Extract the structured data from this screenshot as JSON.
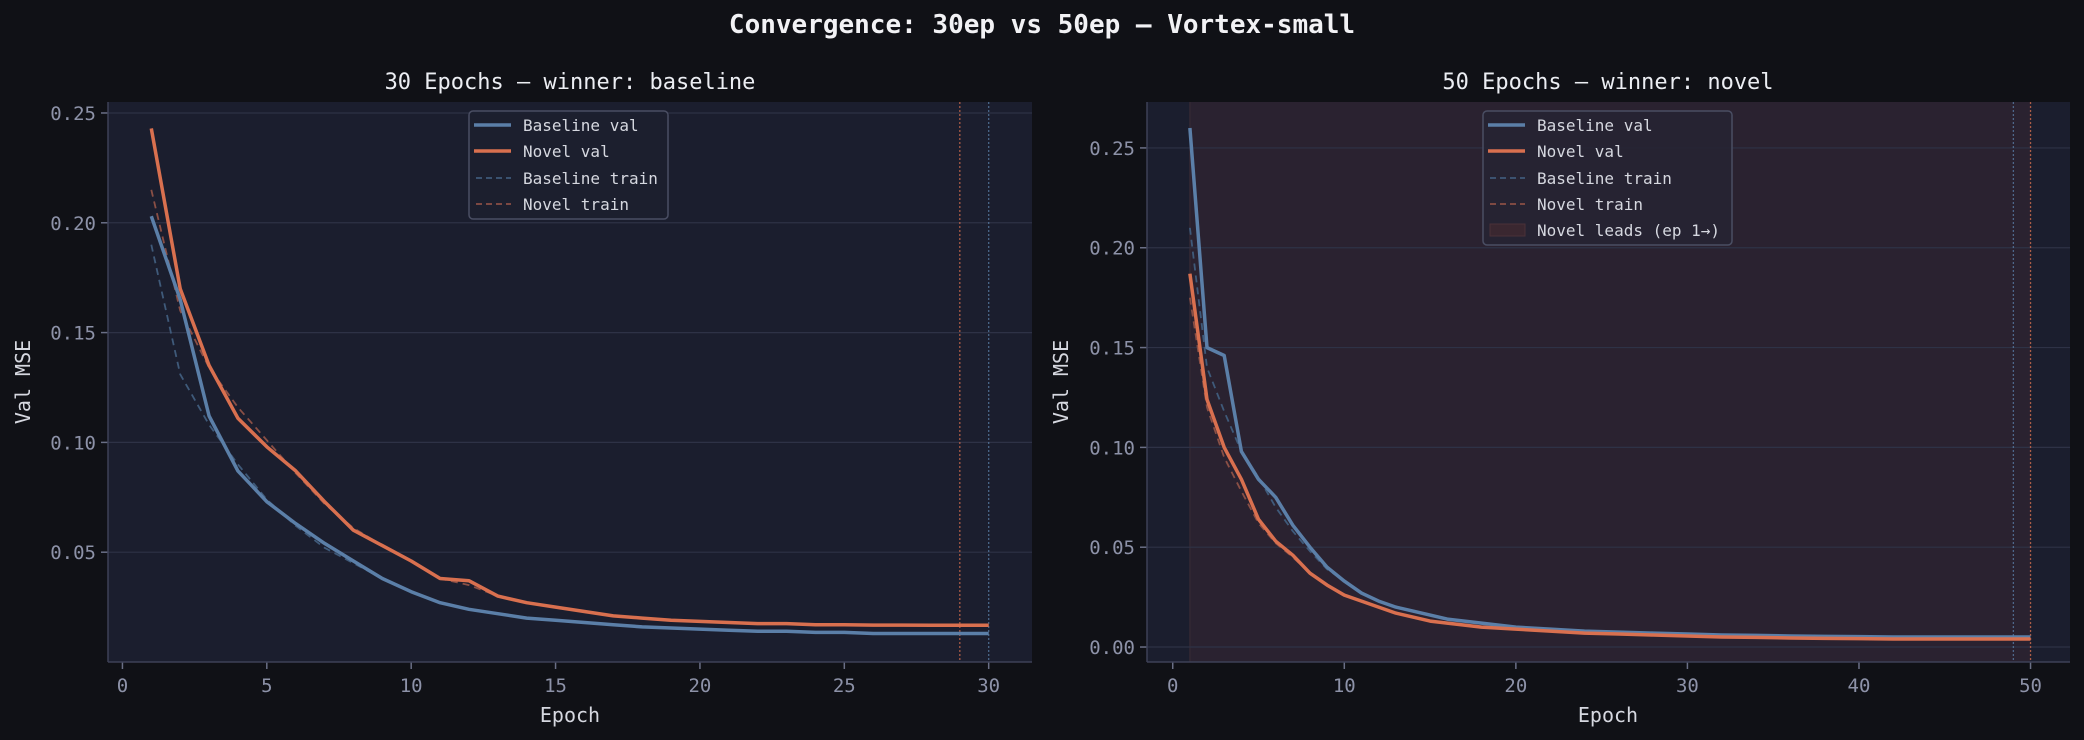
{
  "figure": {
    "title": "Convergence: 30ep vs 50ep — Vortex-small",
    "background": "#101116"
  },
  "colors": {
    "baseline": "#5b7fa8",
    "novel": "#d9704f",
    "baseline_train": "#3f5a7a",
    "novel_train": "#8a4f45",
    "plot_bg": "#1b1e2e",
    "lead_region": "#2a2230",
    "grid": "#2e3246",
    "spine": "#3d4157"
  },
  "legend": {
    "baseline_val": "Baseline val",
    "novel_val": "Novel val",
    "baseline_train": "Baseline train",
    "novel_train": "Novel train",
    "novel_leads": "Novel leads (ep 1→)"
  },
  "chart_data": [
    {
      "type": "line",
      "title": "30 Epochs  —  winner: baseline",
      "xlabel": "Epoch",
      "ylabel": "Val MSE",
      "xlim": [
        -0.5,
        31.5
      ],
      "ylim": [
        0.0,
        0.255
      ],
      "xticks": [
        0,
        5,
        10,
        15,
        20,
        25,
        30
      ],
      "yticks": [
        0.05,
        0.1,
        0.15,
        0.2,
        0.25
      ],
      "ytick_labels": [
        "0.05",
        "0.10",
        "0.15",
        "0.20",
        "0.25"
      ],
      "grid": true,
      "legend_position": "upper center",
      "vlines": [
        {
          "x": 29,
          "color": "novel",
          "style": "dotted"
        },
        {
          "x": 30,
          "color": "baseline",
          "style": "dotted"
        }
      ],
      "x": [
        1,
        2,
        3,
        4,
        5,
        6,
        7,
        8,
        9,
        10,
        11,
        12,
        13,
        14,
        15,
        16,
        17,
        18,
        19,
        20,
        21,
        22,
        23,
        24,
        25,
        26,
        27,
        28,
        29,
        30
      ],
      "series": [
        {
          "name": "Baseline val",
          "style": "solid",
          "values": [
            0.203,
            0.165,
            0.112,
            0.087,
            0.073,
            0.063,
            0.054,
            0.046,
            0.038,
            0.032,
            0.027,
            0.024,
            0.022,
            0.02,
            0.019,
            0.018,
            0.017,
            0.016,
            0.0155,
            0.015,
            0.0145,
            0.014,
            0.014,
            0.0135,
            0.0135,
            0.013,
            0.013,
            0.013,
            0.013,
            0.013
          ]
        },
        {
          "name": "Novel val",
          "style": "solid",
          "values": [
            0.243,
            0.17,
            0.135,
            0.111,
            0.098,
            0.087,
            0.073,
            0.06,
            0.053,
            0.046,
            0.038,
            0.037,
            0.03,
            0.027,
            0.025,
            0.023,
            0.021,
            0.02,
            0.019,
            0.0185,
            0.018,
            0.0175,
            0.0175,
            0.017,
            0.017,
            0.0168,
            0.0168,
            0.0167,
            0.0167,
            0.0167
          ]
        },
        {
          "name": "Baseline train",
          "style": "dashed",
          "values": [
            0.19,
            0.131,
            0.108,
            0.09,
            0.074,
            0.062,
            0.052,
            0.045,
            0.038,
            0.032,
            0.027,
            0.024,
            0.022,
            0.02,
            0.019,
            0.018,
            0.017,
            0.016,
            0.0155,
            0.015,
            0.0145,
            0.014,
            0.014,
            0.0135,
            0.0135,
            0.013,
            0.013,
            0.013,
            0.013,
            0.013
          ]
        },
        {
          "name": "Novel train",
          "style": "dashed",
          "values": [
            0.215,
            0.16,
            0.134,
            0.116,
            0.101,
            0.086,
            0.072,
            0.061,
            0.053,
            0.046,
            0.038,
            0.035,
            0.03,
            0.027,
            0.025,
            0.023,
            0.021,
            0.02,
            0.019,
            0.0185,
            0.018,
            0.0175,
            0.0175,
            0.017,
            0.017,
            0.0168,
            0.0168,
            0.0167,
            0.0167,
            0.0167
          ]
        }
      ]
    },
    {
      "type": "line",
      "title": "50 Epochs  —  winner: novel",
      "xlabel": "Epoch",
      "ylabel": "Val MSE",
      "xlim": [
        -1.5,
        52.3
      ],
      "ylim": [
        -0.0075,
        0.273
      ],
      "xticks": [
        0,
        10,
        20,
        30,
        40,
        50
      ],
      "yticks": [
        0.0,
        0.05,
        0.1,
        0.15,
        0.2,
        0.25
      ],
      "ytick_labels": [
        "0.00",
        "0.05",
        "0.10",
        "0.15",
        "0.20",
        "0.25"
      ],
      "grid": true,
      "legend_position": "upper center",
      "shaded_region": {
        "label": "Novel leads (ep 1→)",
        "x_start": 1,
        "x_end": 50
      },
      "vlines": [
        {
          "x": 49,
          "color": "baseline",
          "style": "dotted"
        },
        {
          "x": 50,
          "color": "novel",
          "style": "dotted"
        }
      ],
      "x": [
        1,
        2,
        3,
        4,
        5,
        6,
        7,
        8,
        9,
        10,
        11,
        12,
        13,
        14,
        15,
        16,
        17,
        18,
        19,
        20,
        22,
        24,
        26,
        28,
        30,
        32,
        34,
        36,
        38,
        40,
        42,
        44,
        46,
        48,
        50
      ],
      "series": [
        {
          "name": "Baseline val",
          "style": "solid",
          "values": [
            0.26,
            0.15,
            0.146,
            0.098,
            0.084,
            0.075,
            0.061,
            0.05,
            0.04,
            0.033,
            0.027,
            0.023,
            0.02,
            0.018,
            0.016,
            0.014,
            0.013,
            0.012,
            0.011,
            0.01,
            0.009,
            0.008,
            0.0075,
            0.007,
            0.0065,
            0.006,
            0.0058,
            0.0055,
            0.0053,
            0.0052,
            0.005,
            0.005,
            0.005,
            0.005,
            0.005
          ]
        },
        {
          "name": "Novel val",
          "style": "solid",
          "values": [
            0.187,
            0.124,
            0.1,
            0.084,
            0.064,
            0.053,
            0.046,
            0.037,
            0.031,
            0.026,
            0.023,
            0.02,
            0.017,
            0.015,
            0.013,
            0.012,
            0.011,
            0.01,
            0.0095,
            0.009,
            0.008,
            0.007,
            0.0065,
            0.006,
            0.0055,
            0.005,
            0.0048,
            0.0045,
            0.0043,
            0.0042,
            0.004,
            0.004,
            0.004,
            0.004,
            0.004
          ]
        },
        {
          "name": "Baseline train",
          "style": "dashed",
          "values": [
            0.21,
            0.14,
            0.118,
            0.098,
            0.085,
            0.07,
            0.058,
            0.048,
            0.039,
            0.033,
            0.027,
            0.023,
            0.02,
            0.018,
            0.016,
            0.014,
            0.013,
            0.012,
            0.011,
            0.01,
            0.009,
            0.008,
            0.0075,
            0.007,
            0.0065,
            0.006,
            0.0058,
            0.0055,
            0.0053,
            0.0052,
            0.005,
            0.005,
            0.005,
            0.005,
            0.005
          ]
        },
        {
          "name": "Novel train",
          "style": "dashed",
          "values": [
            0.175,
            0.12,
            0.095,
            0.078,
            0.062,
            0.052,
            0.045,
            0.037,
            0.031,
            0.026,
            0.023,
            0.02,
            0.017,
            0.015,
            0.013,
            0.012,
            0.011,
            0.01,
            0.0095,
            0.009,
            0.008,
            0.007,
            0.0065,
            0.006,
            0.0055,
            0.005,
            0.0048,
            0.0045,
            0.0043,
            0.0042,
            0.004,
            0.004,
            0.004,
            0.004,
            0.004
          ]
        }
      ]
    }
  ]
}
